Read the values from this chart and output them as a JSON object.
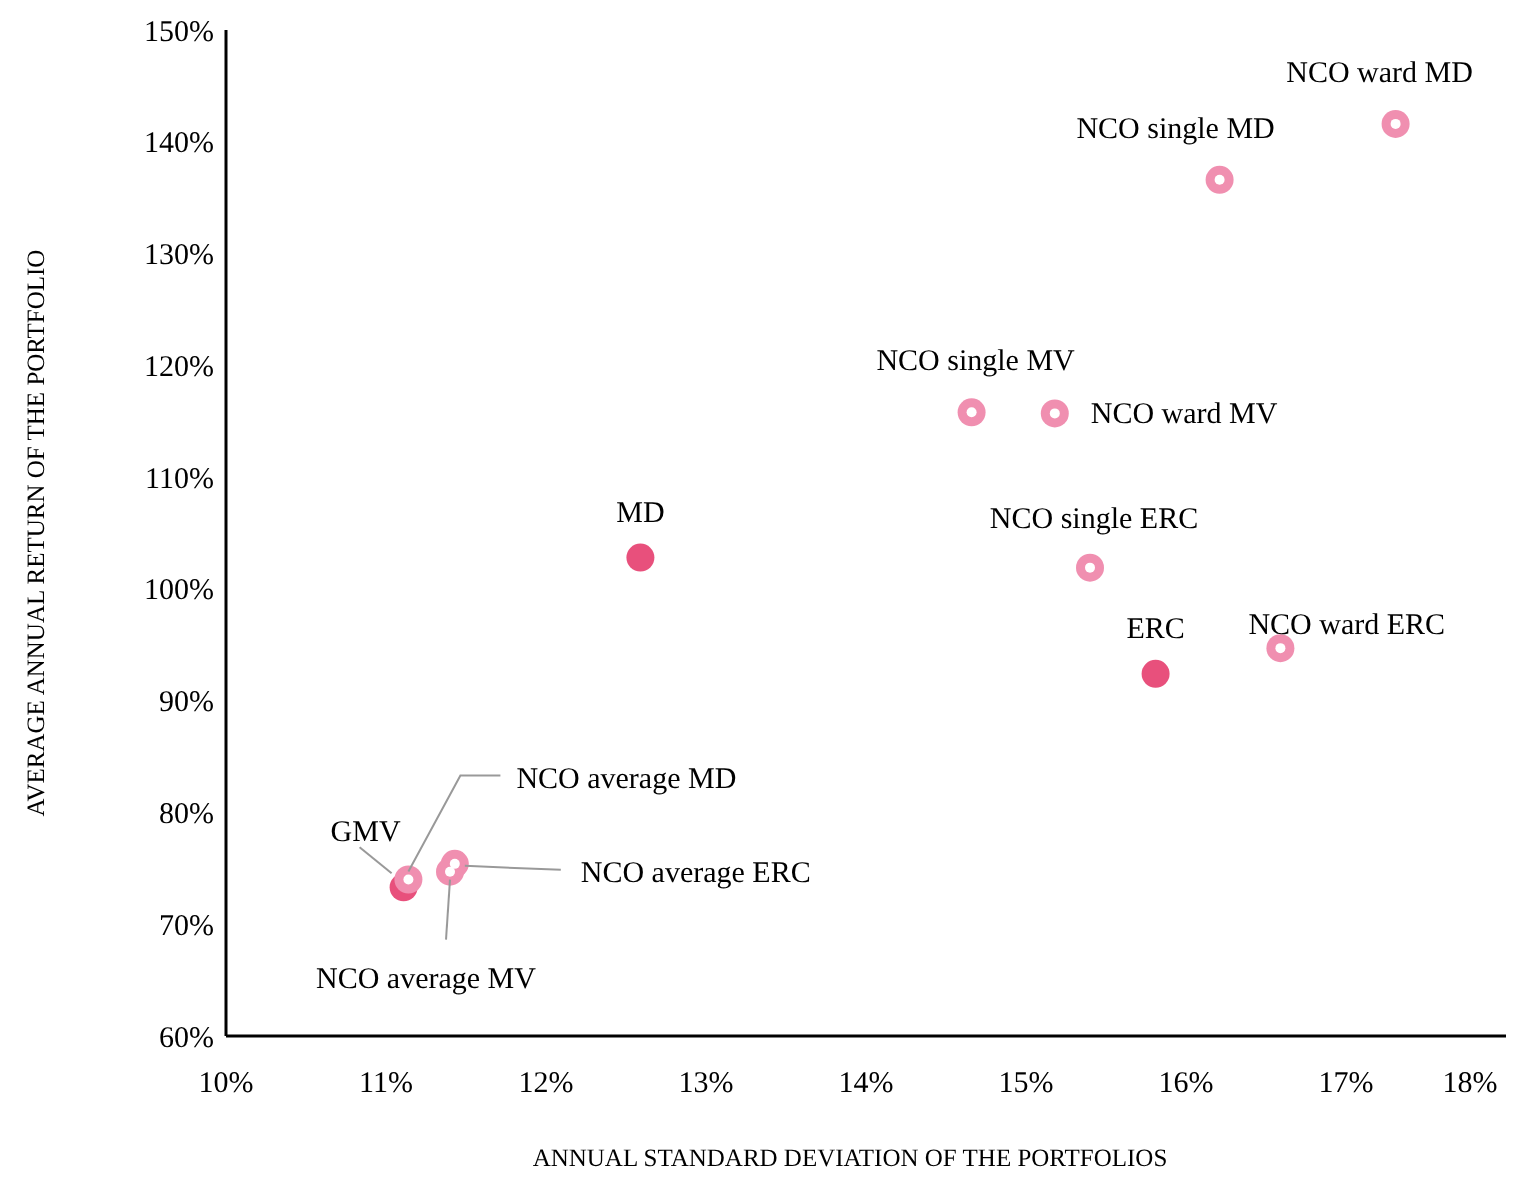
{
  "chart_data": {
    "type": "scatter",
    "xlabel": "ANNUAL STANDARD DEVIATION OF THE PORTFOLIOS",
    "ylabel": "AVERAGE ANNUAL RETURN OF THE PORTFOLIO",
    "xlim": [
      10,
      18
    ],
    "ylim": [
      60,
      150
    ],
    "xticks": [
      {
        "value": 10,
        "label": "10%"
      },
      {
        "value": 11,
        "label": "11%"
      },
      {
        "value": 12,
        "label": "12%"
      },
      {
        "value": 13,
        "label": "13%"
      },
      {
        "value": 14,
        "label": "14%"
      },
      {
        "value": 15,
        "label": "15%"
      },
      {
        "value": 16,
        "label": "16%"
      },
      {
        "value": 17,
        "label": "17%"
      },
      {
        "value": 18,
        "label": "18%"
      }
    ],
    "yticks": [
      {
        "value": 60,
        "label": "60%"
      },
      {
        "value": 70,
        "label": "70%"
      },
      {
        "value": 80,
        "label": "80%"
      },
      {
        "value": 90,
        "label": "90%"
      },
      {
        "value": 100,
        "label": "100%"
      },
      {
        "value": 110,
        "label": "110%"
      },
      {
        "value": 120,
        "label": "120%"
      },
      {
        "value": 130,
        "label": "130%"
      },
      {
        "value": 140,
        "label": "140%"
      },
      {
        "value": 150,
        "label": "150%"
      }
    ],
    "marker": "circle",
    "grid": false,
    "series": [
      {
        "color": "#e8507c",
        "x": [
          11.11,
          12.59,
          15.81
        ],
        "values": [
          73.3,
          102.8,
          92.4
        ]
      },
      {
        "color": "#f08fb0",
        "x": [
          17.31,
          16.21,
          14.66,
          15.18,
          15.4,
          16.59,
          11.14,
          11.43,
          11.4
        ],
        "values": [
          141.6,
          136.6,
          115.8,
          115.7,
          101.9,
          94.7,
          74.0,
          75.4,
          74.7
        ]
      }
    ],
    "annotations": [
      {
        "text": "GMV",
        "x": 11.11,
        "y": 73.3
      },
      {
        "text": "MD",
        "x": 12.59,
        "y": 102.8
      },
      {
        "text": "ERC",
        "x": 15.81,
        "y": 92.4
      },
      {
        "text": "NCO ward MD",
        "x": 17.31,
        "y": 141.6
      },
      {
        "text": "NCO single MD",
        "x": 16.21,
        "y": 136.6
      },
      {
        "text": "NCO single MV",
        "x": 14.66,
        "y": 115.8
      },
      {
        "text": "NCO ward MV",
        "x": 15.18,
        "y": 115.7
      },
      {
        "text": "NCO single ERC",
        "x": 15.4,
        "y": 101.9
      },
      {
        "text": "NCO ward ERC",
        "x": 16.59,
        "y": 94.7
      },
      {
        "text": "NCO average MD",
        "x": 11.14,
        "y": 74.0
      },
      {
        "text": "NCO average ERC",
        "x": 11.43,
        "y": 75.4
      },
      {
        "text": "NCO average MV",
        "x": 11.4,
        "y": 74.7
      }
    ]
  }
}
